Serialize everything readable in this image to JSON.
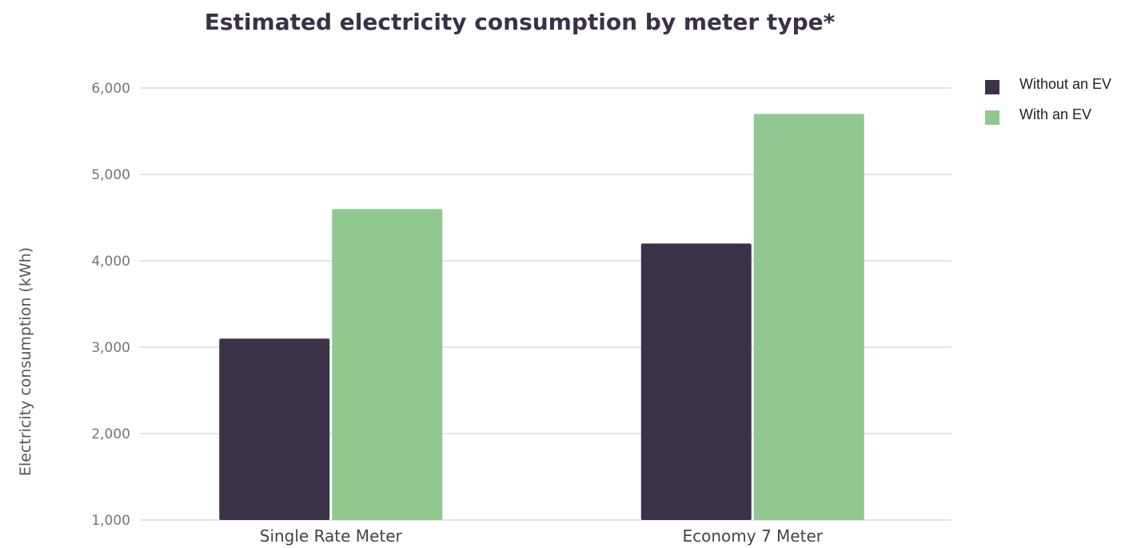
{
  "chart_data": {
    "type": "bar",
    "title": "Estimated electricity consumption by meter type*",
    "xlabel": "",
    "ylabel": "Electricity consumption (kWh)",
    "ylim": [
      1000,
      6000
    ],
    "yticks": [
      "1,000",
      "2,000",
      "3,000",
      "4,000",
      "5,000",
      "6,000"
    ],
    "ytick_values": [
      1000,
      2000,
      3000,
      4000,
      5000,
      6000
    ],
    "categories": [
      "Single Rate Meter",
      "Economy 7 Meter"
    ],
    "series": [
      {
        "name": "Without an EV",
        "values": [
          3100,
          4200
        ],
        "color": "#3d3349"
      },
      {
        "name": "With an EV",
        "values": [
          4600,
          5700
        ],
        "color": "#90c890"
      }
    ],
    "grid": true,
    "legend_position": "top-right"
  }
}
